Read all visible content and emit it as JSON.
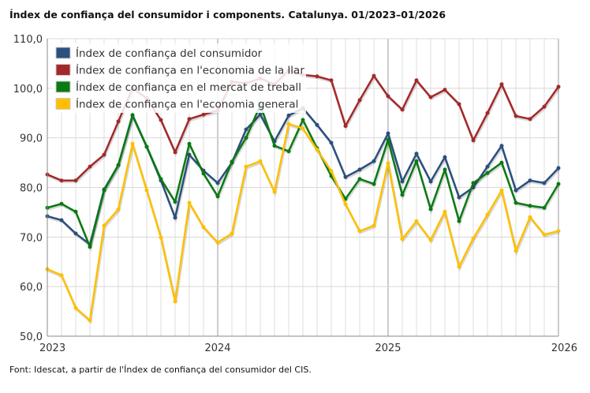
{
  "chart_data": {
    "type": "line",
    "title": "Índex de confiança del consumidor i components. Catalunya. 01/2023–01/2026",
    "source": "Font: Idescat, a partir de l'Índex de confiança del consumidor del CIS.",
    "xlabel": "",
    "ylabel": "",
    "ylim": [
      50,
      110
    ],
    "yticks": [
      "50,0",
      "60,0",
      "70,0",
      "80,0",
      "90,0",
      "100,0",
      "110,0"
    ],
    "xticks": [
      "2023",
      "2024",
      "2025",
      "2026"
    ],
    "x_start": "2023-01",
    "x_end": "2026-01",
    "legend_position": "top-left",
    "grid": true,
    "series": [
      {
        "name": "Índex de confiança del consumidor",
        "color": "#2b4f7e",
        "values": [
          74.2,
          73.4,
          70.7,
          68.5,
          79.6,
          84.5,
          94.5,
          88.2,
          81.4,
          73.9,
          86.6,
          83.4,
          80.9,
          85.0,
          91.7,
          94.7,
          89.3,
          94.5,
          96.0,
          92.6,
          89.0,
          82.1,
          83.6,
          85.3,
          90.9,
          81.2,
          86.8,
          81.2,
          86.1,
          78.0,
          80.0,
          84.2,
          88.4,
          79.4,
          81.4,
          80.9,
          83.9
        ]
      },
      {
        "name": "Índex de confiança en l'economia de la llar",
        "color": "#a4282a",
        "values": [
          82.6,
          81.4,
          81.4,
          84.2,
          86.6,
          93.3,
          100.0,
          98.0,
          93.6,
          87.1,
          93.8,
          94.7,
          95.5,
          101.3,
          101.0,
          102.0,
          100.8,
          103.6,
          102.7,
          102.4,
          101.6,
          92.4,
          97.6,
          102.5,
          98.4,
          95.7,
          101.6,
          98.2,
          99.7,
          96.8,
          89.5,
          95.0,
          100.8,
          94.4,
          93.8,
          96.3,
          100.3
        ]
      },
      {
        "name": "Índex de confiança en el mercat de treball",
        "color": "#0a7a12",
        "values": [
          75.9,
          76.7,
          75.1,
          68.0,
          79.4,
          84.5,
          94.6,
          88.2,
          81.7,
          77.1,
          88.8,
          82.8,
          78.2,
          85.2,
          90.0,
          96.6,
          88.4,
          87.3,
          93.6,
          87.9,
          82.3,
          77.7,
          81.7,
          80.7,
          89.6,
          78.5,
          85.3,
          75.6,
          83.6,
          73.2,
          80.9,
          82.9,
          85.0,
          76.9,
          76.3,
          75.9,
          80.7
        ]
      },
      {
        "name": "Índex de confiança en l'economia general",
        "color": "#ffbf00",
        "values": [
          63.5,
          62.3,
          55.7,
          53.2,
          72.3,
          75.6,
          88.8,
          79.4,
          69.9,
          57.0,
          76.9,
          72.0,
          68.9,
          70.7,
          84.2,
          85.3,
          79.1,
          92.8,
          91.9,
          87.6,
          83.3,
          76.6,
          71.2,
          72.3,
          84.9,
          69.6,
          73.2,
          69.4,
          75.1,
          64.0,
          69.7,
          74.5,
          79.4,
          67.2,
          74.0,
          70.5,
          71.2
        ]
      }
    ]
  }
}
